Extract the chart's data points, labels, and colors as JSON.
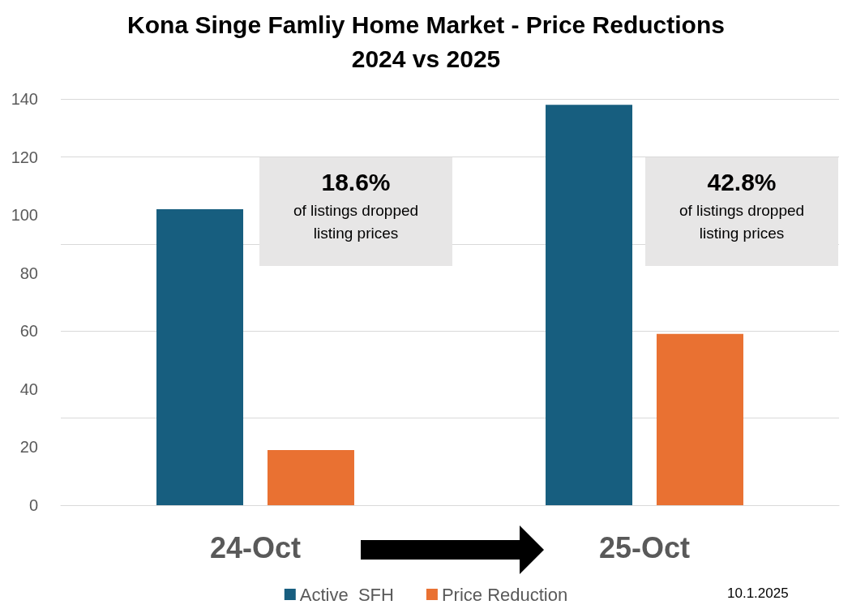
{
  "chart_data": {
    "type": "bar",
    "title": "Kona Singe Famliy Home Market - Price Reductions\n2024 vs 2025",
    "categories": [
      "24-Oct",
      "25-Oct"
    ],
    "series": [
      {
        "name": "Active  SFH",
        "color": "#175e7f",
        "values": [
          102,
          138
        ]
      },
      {
        "name": "Price Reduction",
        "color": "#e97132",
        "values": [
          19,
          59
        ]
      }
    ],
    "ylim": [
      0,
      140
    ],
    "yticks": [
      0,
      20,
      40,
      60,
      80,
      100,
      120,
      140
    ],
    "grid": "y",
    "legend": "bottom",
    "annotations": [
      "18.6%",
      "of listings dropped listing prices",
      "42.8%",
      "of listings dropped listing prices",
      "10.1.2025"
    ]
  }
}
